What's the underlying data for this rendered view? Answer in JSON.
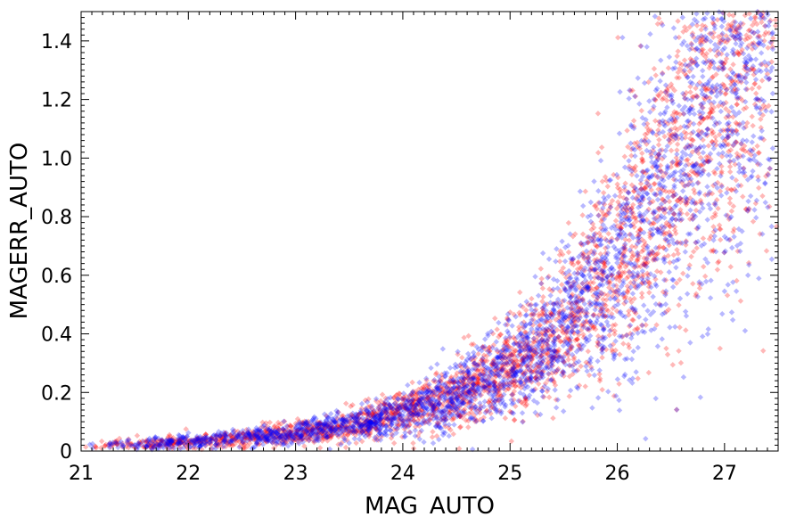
{
  "chart_data": {
    "type": "scatter",
    "xlabel": "MAG_AUTO",
    "ylabel": "MAGERR_AUTO",
    "xlim": [
      21,
      27.5
    ],
    "ylim": [
      0,
      1.5
    ],
    "x_ticks": [
      21,
      22,
      23,
      24,
      25,
      26,
      27
    ],
    "y_ticks": [
      0,
      0.2,
      0.4,
      0.6,
      0.8,
      1.0,
      1.2,
      1.4
    ],
    "x_tick_labels": [
      "21",
      "22",
      "23",
      "24",
      "25",
      "26",
      "27"
    ],
    "y_tick_labels": [
      "0",
      "0.2",
      "0.4",
      "0.6",
      "0.8",
      "1.0",
      "1.2",
      "1.4"
    ],
    "grid": false,
    "marker": "diamond",
    "trend": {
      "x": [
        21.0,
        22.0,
        23.0,
        23.5,
        24.0,
        24.5,
        25.0,
        25.5,
        26.0,
        26.5,
        27.0,
        27.4
      ],
      "y": [
        0.015,
        0.03,
        0.06,
        0.09,
        0.13,
        0.19,
        0.28,
        0.42,
        0.65,
        0.95,
        1.3,
        1.55
      ]
    },
    "series": [
      {
        "color": "#ff0000",
        "n_points": 3000
      },
      {
        "color": "#0000ff",
        "n_points": 3000
      }
    ]
  }
}
